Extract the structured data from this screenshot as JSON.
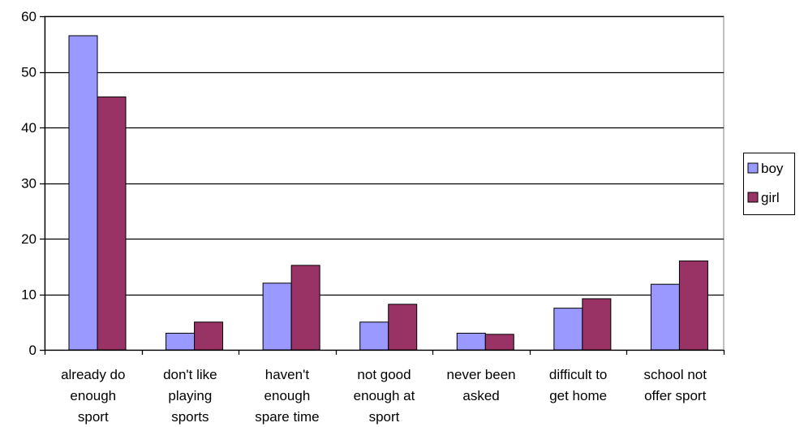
{
  "chart_data": {
    "type": "bar",
    "title": "",
    "xlabel": "",
    "ylabel": "",
    "ylim": [
      0,
      60
    ],
    "yticks": [
      0,
      10,
      20,
      30,
      40,
      50,
      60
    ],
    "grid": true,
    "legend_position": "right",
    "categories": [
      [
        "already do",
        "enough",
        "sport"
      ],
      [
        "don't like",
        "playing",
        "sports"
      ],
      [
        "haven't",
        "enough",
        "spare time"
      ],
      [
        "not good",
        "enough at",
        "sport"
      ],
      [
        "never been",
        "asked"
      ],
      [
        "difficult to",
        "get home"
      ],
      [
        "school not",
        "offer sport"
      ]
    ],
    "series": [
      {
        "name": "boy",
        "color": "#9999ff",
        "values": [
          56.5,
          3.0,
          12.0,
          5.0,
          3.0,
          7.5,
          11.8
        ]
      },
      {
        "name": "girl",
        "color": "#993366",
        "values": [
          45.5,
          5.0,
          15.2,
          8.2,
          2.8,
          9.2,
          16.0
        ]
      }
    ]
  }
}
